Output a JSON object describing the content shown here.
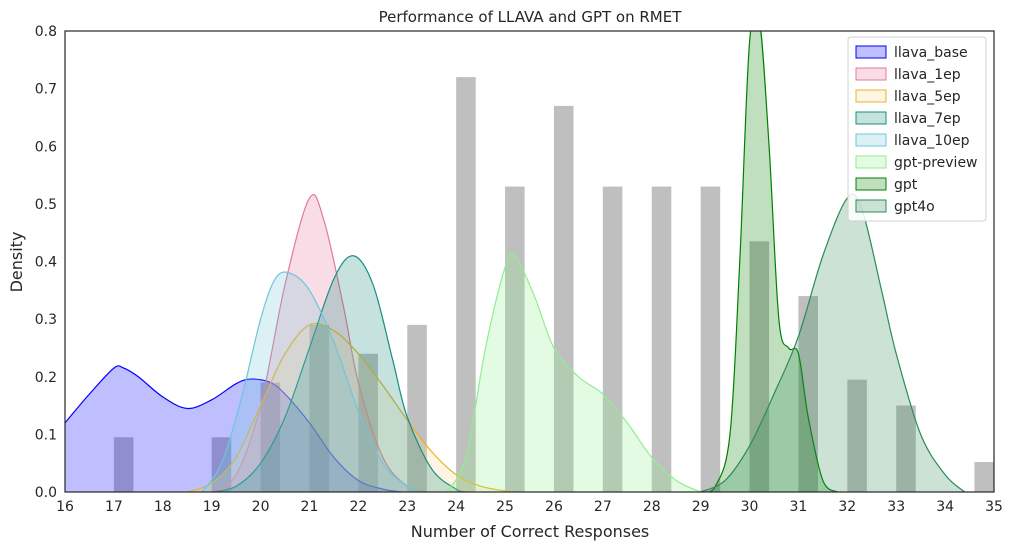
{
  "chart_data": {
    "type": "area",
    "title": "Performance of LLAVA and GPT on RMET",
    "xlabel": "Number of Correct Responses",
    "ylabel": "Density",
    "xlim": [
      16,
      35
    ],
    "ylim": [
      0,
      0.8
    ],
    "x_ticks": [
      "16",
      "17",
      "18",
      "19",
      "20",
      "21",
      "22",
      "23",
      "24",
      "25",
      "26",
      "27",
      "28",
      "29",
      "30",
      "31",
      "32",
      "33",
      "34",
      "35"
    ],
    "y_ticks": [
      "0.0",
      "0.1",
      "0.2",
      "0.3",
      "0.4",
      "0.5",
      "0.6",
      "0.7",
      "0.8"
    ],
    "grid": false,
    "legend_position": "top-right",
    "histogram": {
      "color": "#a9a9a9",
      "bars": [
        {
          "x": 17.2,
          "density": 0.095
        },
        {
          "x": 19.2,
          "density": 0.095
        },
        {
          "x": 20.2,
          "density": 0.19
        },
        {
          "x": 21.2,
          "density": 0.29
        },
        {
          "x": 22.2,
          "density": 0.24
        },
        {
          "x": 23.2,
          "density": 0.29
        },
        {
          "x": 24.2,
          "density": 0.72
        },
        {
          "x": 25.2,
          "density": 0.53
        },
        {
          "x": 26.2,
          "density": 0.67
        },
        {
          "x": 27.2,
          "density": 0.53
        },
        {
          "x": 28.2,
          "density": 0.53
        },
        {
          "x": 29.2,
          "density": 0.53
        },
        {
          "x": 30.2,
          "density": 0.435
        },
        {
          "x": 31.2,
          "density": 0.34
        },
        {
          "x": 32.2,
          "density": 0.195
        },
        {
          "x": 33.2,
          "density": 0.15
        },
        {
          "x": 34.8,
          "density": 0.052
        }
      ]
    },
    "series": [
      {
        "name": "llava_base",
        "color": "#0000ff",
        "fill": "#0000ff",
        "points": [
          [
            16,
            0.12
          ],
          [
            16.5,
            0.17
          ],
          [
            17,
            0.215
          ],
          [
            17.2,
            0.215
          ],
          [
            17.5,
            0.2
          ],
          [
            18,
            0.165
          ],
          [
            18.5,
            0.145
          ],
          [
            19,
            0.16
          ],
          [
            19.5,
            0.188
          ],
          [
            19.8,
            0.196
          ],
          [
            20.2,
            0.19
          ],
          [
            20.5,
            0.17
          ],
          [
            21,
            0.12
          ],
          [
            21.5,
            0.06
          ],
          [
            22,
            0.02
          ],
          [
            22.5,
            0.005
          ],
          [
            22.9,
            0
          ]
        ]
      },
      {
        "name": "llava_1ep",
        "color": "#e377a0",
        "fill": "#e377a0",
        "points": [
          [
            19,
            0
          ],
          [
            19.5,
            0.03
          ],
          [
            20,
            0.15
          ],
          [
            20.5,
            0.36
          ],
          [
            21,
            0.51
          ],
          [
            21.3,
            0.47
          ],
          [
            21.7,
            0.32
          ],
          [
            22,
            0.19
          ],
          [
            22.5,
            0.06
          ],
          [
            23,
            0.01
          ],
          [
            23.4,
            0
          ]
        ]
      },
      {
        "name": "llava_5ep",
        "color": "#e6b428",
        "fill": "#f5d78e",
        "points": [
          [
            18.5,
            0
          ],
          [
            19,
            0.015
          ],
          [
            19.5,
            0.06
          ],
          [
            20,
            0.15
          ],
          [
            20.5,
            0.24
          ],
          [
            21,
            0.29
          ],
          [
            21.5,
            0.28
          ],
          [
            22,
            0.24
          ],
          [
            22.5,
            0.185
          ],
          [
            23,
            0.125
          ],
          [
            23.5,
            0.07
          ],
          [
            24,
            0.03
          ],
          [
            24.5,
            0.01
          ],
          [
            25,
            0.002
          ],
          [
            25.3,
            0
          ]
        ]
      },
      {
        "name": "llava_7ep",
        "color": "#1a8c80",
        "fill": "#1a8c80",
        "points": [
          [
            19,
            0
          ],
          [
            19.5,
            0.01
          ],
          [
            20,
            0.05
          ],
          [
            20.5,
            0.13
          ],
          [
            21,
            0.25
          ],
          [
            21.5,
            0.37
          ],
          [
            21.9,
            0.41
          ],
          [
            22.3,
            0.36
          ],
          [
            22.7,
            0.23
          ],
          [
            23,
            0.13
          ],
          [
            23.5,
            0.04
          ],
          [
            24,
            0.005
          ],
          [
            24.2,
            0
          ]
        ]
      },
      {
        "name": "llava_10ep",
        "color": "#6ec6d9",
        "fill": "#6ec6d9",
        "points": [
          [
            18.8,
            0
          ],
          [
            19.2,
            0.05
          ],
          [
            19.6,
            0.16
          ],
          [
            20,
            0.3
          ],
          [
            20.3,
            0.37
          ],
          [
            20.6,
            0.38
          ],
          [
            21,
            0.35
          ],
          [
            21.5,
            0.26
          ],
          [
            22,
            0.14
          ],
          [
            22.5,
            0.05
          ],
          [
            23,
            0.01
          ],
          [
            23.3,
            0
          ]
        ]
      },
      {
        "name": "gpt-preview",
        "color": "#90ee90",
        "fill": "#90ee90",
        "points": [
          [
            23.8,
            0
          ],
          [
            24.2,
            0.06
          ],
          [
            24.6,
            0.25
          ],
          [
            25,
            0.39
          ],
          [
            25.2,
            0.41
          ],
          [
            25.6,
            0.34
          ],
          [
            26,
            0.25
          ],
          [
            26.5,
            0.2
          ],
          [
            27,
            0.17
          ],
          [
            27.5,
            0.12
          ],
          [
            28,
            0.06
          ],
          [
            28.5,
            0.02
          ],
          [
            29,
            0
          ]
        ]
      },
      {
        "name": "gpt",
        "color": "#008000",
        "fill": "#008000",
        "points": [
          [
            29,
            0
          ],
          [
            29.3,
            0.01
          ],
          [
            29.6,
            0.1
          ],
          [
            29.8,
            0.4
          ],
          [
            30,
            0.78
          ],
          [
            30.2,
            0.82
          ],
          [
            30.4,
            0.6
          ],
          [
            30.6,
            0.3
          ],
          [
            30.8,
            0.25
          ],
          [
            31,
            0.24
          ],
          [
            31.2,
            0.13
          ],
          [
            31.5,
            0.02
          ],
          [
            31.8,
            0
          ]
        ]
      },
      {
        "name": "gpt4o",
        "color": "#2e8b57",
        "fill": "#2e8b57",
        "points": [
          [
            29,
            0
          ],
          [
            29.5,
            0.02
          ],
          [
            30,
            0.08
          ],
          [
            30.5,
            0.17
          ],
          [
            31,
            0.27
          ],
          [
            31.5,
            0.41
          ],
          [
            32,
            0.51
          ],
          [
            32.3,
            0.49
          ],
          [
            32.7,
            0.35
          ],
          [
            33,
            0.24
          ],
          [
            33.5,
            0.1
          ],
          [
            34,
            0.03
          ],
          [
            34.4,
            0
          ]
        ]
      }
    ]
  }
}
